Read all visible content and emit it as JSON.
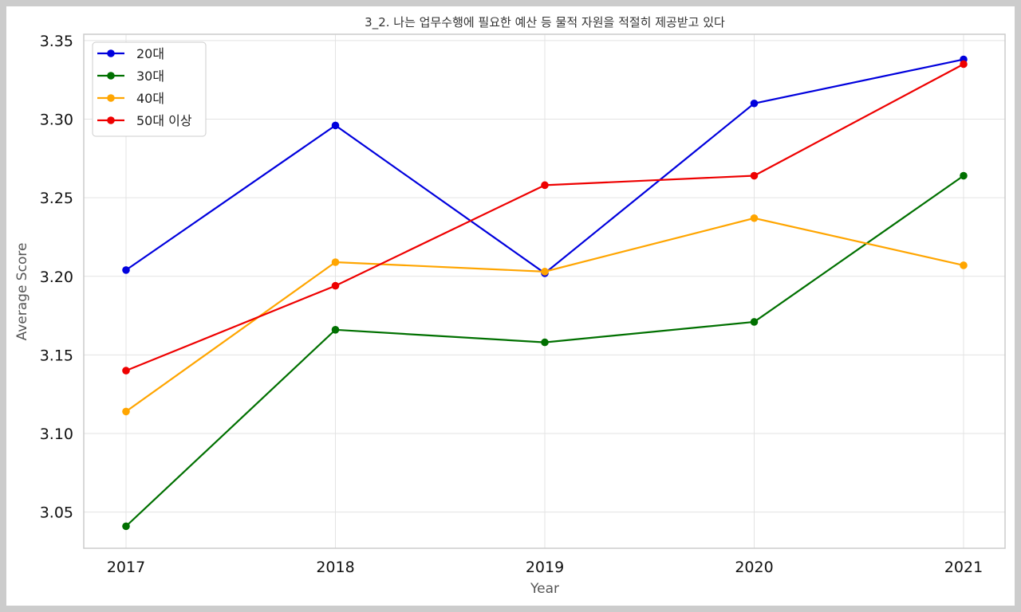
{
  "chart_data": {
    "type": "line",
    "title": "3_2. 나는 업무수행에 필요한 예산 등 물적 자원을 적절히 제공받고 있다",
    "xlabel": "Year",
    "ylabel": "Average Score",
    "categories": [
      "2017",
      "2018",
      "2019",
      "2020",
      "2021"
    ],
    "ylim": [
      3.027,
      3.354
    ],
    "yticks": [
      "3.05",
      "3.10",
      "3.15",
      "3.20",
      "3.25",
      "3.30",
      "3.35"
    ],
    "grid": true,
    "legend_position": "top-left",
    "series": [
      {
        "name": "20대",
        "color": "#0000dd",
        "values": [
          3.204,
          3.296,
          3.202,
          3.31,
          3.338
        ]
      },
      {
        "name": "30대",
        "color": "#007000",
        "values": [
          3.041,
          3.166,
          3.158,
          3.171,
          3.264
        ]
      },
      {
        "name": "40대",
        "color": "#ffa500",
        "values": [
          3.114,
          3.209,
          3.203,
          3.237,
          3.207
        ]
      },
      {
        "name": "50대 이상",
        "color": "#ee0000",
        "values": [
          3.14,
          3.194,
          3.258,
          3.264,
          3.335
        ]
      }
    ]
  }
}
